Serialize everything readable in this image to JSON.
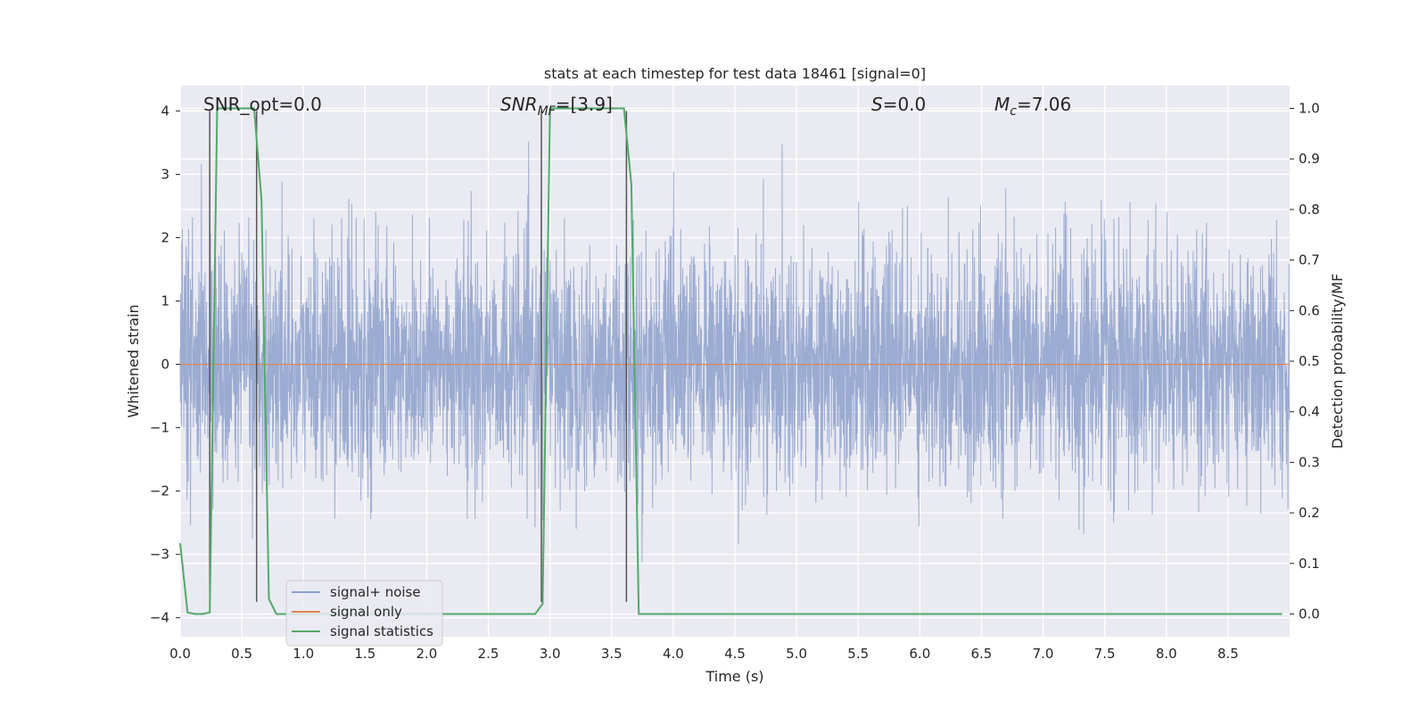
{
  "chart_data": {
    "type": "line",
    "title": "stats at each timestep for test data 18461 [signal=0]",
    "xlabel": "Time (s)",
    "ylabel": "Whitened strain",
    "ylabel_right": "Detection probability/MF",
    "xlim": [
      0.0,
      9.0
    ],
    "ylim": [
      -4.3,
      4.4
    ],
    "ylim_right": [
      -0.045,
      1.045
    ],
    "x_ticks": [
      "0.0",
      "0.5",
      "1.0",
      "1.5",
      "2.0",
      "2.5",
      "3.0",
      "3.5",
      "4.0",
      "4.5",
      "5.0",
      "5.5",
      "6.0",
      "6.5",
      "7.0",
      "7.5",
      "8.0",
      "8.5"
    ],
    "y_ticks": [
      "−4",
      "−3",
      "−2",
      "−1",
      "0",
      "1",
      "2",
      "3",
      "4"
    ],
    "y_ticks_right": [
      "0.0",
      "0.1",
      "0.2",
      "0.3",
      "0.4",
      "0.5",
      "0.6",
      "0.7",
      "0.8",
      "0.9",
      "1.0"
    ],
    "grid": true,
    "legend_placement": "lower-left",
    "annotations": {
      "snr_opt": "SNR_opt=0.0",
      "snr_mf_main": "SNR",
      "snr_mf_sub": "MF",
      "snr_mf_value": "=[3.9]",
      "s_main": "S",
      "s_value": "=0.0",
      "mc_main": "M",
      "mc_sub": "c",
      "mc_value": "=7.06"
    },
    "series": [
      {
        "name": "signal+ noise",
        "color": "#8da0cb",
        "description_values": "whitened noise, approx standard normal, range -3.9..4.0 over 0-9 s",
        "noise": {
          "n_samples": 4500,
          "std": 0.92,
          "min": -3.85,
          "max": 4.0
        }
      },
      {
        "name": "signal only",
        "color": "#dd8452",
        "x": [
          0.0,
          9.0
        ],
        "y": [
          0.0,
          0.0
        ]
      },
      {
        "name": "signal statistics",
        "color": "#55a868",
        "axis": "right",
        "x": [
          0.0,
          0.06,
          0.12,
          0.18,
          0.24,
          0.3,
          0.36,
          0.42,
          0.48,
          0.54,
          0.6,
          0.66,
          0.72,
          0.78,
          0.84,
          2.88,
          2.94,
          3.0,
          3.06,
          3.12,
          3.6,
          3.66,
          3.72,
          3.78,
          8.94
        ],
        "y": [
          0.14,
          0.003,
          0.0,
          0.0,
          0.003,
          1.0,
          1.0,
          1.0,
          1.0,
          1.0,
          1.0,
          0.82,
          0.03,
          0.0,
          0.0,
          0.0,
          0.02,
          1.0,
          1.0,
          1.0,
          1.0,
          0.85,
          0.0,
          0.0,
          0.0
        ]
      }
    ],
    "vlines": {
      "color": "#555555",
      "x": [
        0.24,
        0.62,
        2.93,
        3.62
      ],
      "y_from": -3.75,
      "y_to": 4.0
    }
  }
}
